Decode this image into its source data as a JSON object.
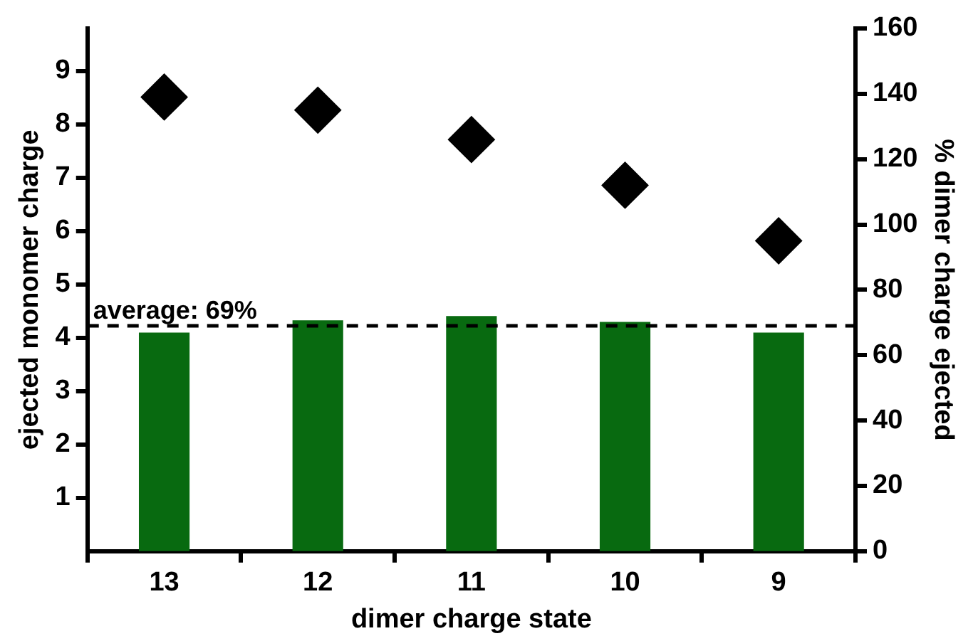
{
  "chart_data": {
    "type": "bar",
    "xlabel": "dimer charge state",
    "ylabel": "ejected monomer charge",
    "y2label": "% dimer charge ejected",
    "categories": [
      "13",
      "12",
      "11",
      "10",
      "9"
    ],
    "series": [
      {
        "color": "#086a10",
        "values": [
          4.1,
          4.33,
          4.41,
          4.3,
          4.1
        ]
      },
      {
        "type": "scatter",
        "axis": "y2",
        "color": "#000000",
        "marker": "diamond",
        "x": [
          "13",
          "12",
          "11",
          "10",
          "9"
        ],
        "values": [
          139,
          135,
          126,
          112,
          95
        ]
      }
    ],
    "ylim": [
      0,
      9.8
    ],
    "yticks": [
      1,
      2,
      3,
      4,
      5,
      6,
      7,
      8,
      9
    ],
    "y2lim": [
      0,
      160
    ],
    "y2ticks": [
      0,
      20,
      40,
      60,
      80,
      100,
      120,
      140,
      160
    ],
    "ref_lines": [
      {
        "axis": "y2",
        "value": 69,
        "label": "average: 69%",
        "color": "#000000",
        "line_style": "dashed"
      }
    ],
    "legend": false
  }
}
